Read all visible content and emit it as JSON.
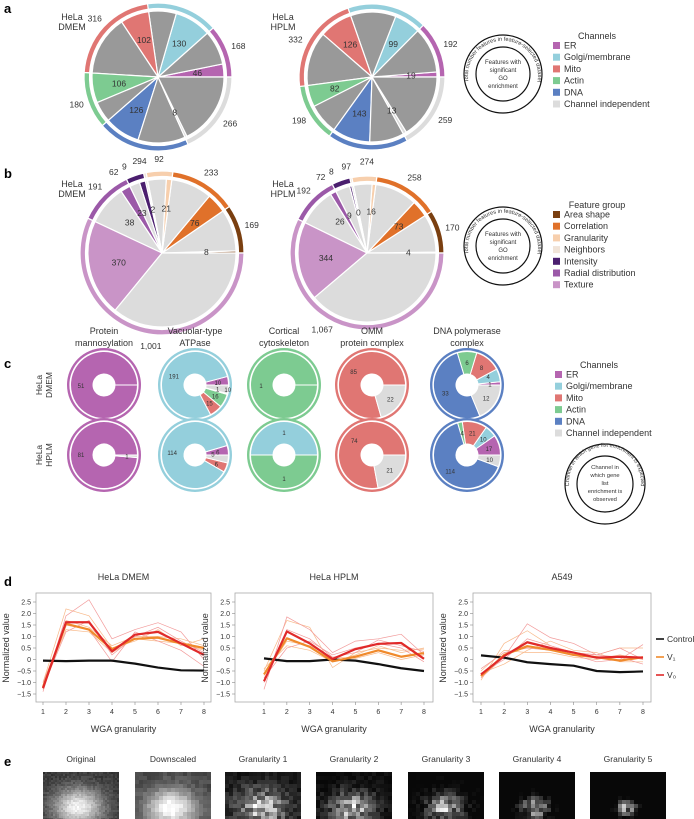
{
  "panel_labels": {
    "a": "a",
    "b": "b",
    "c": "c",
    "d": "d",
    "e": "e"
  },
  "colors": {
    "channels": {
      "ER": "#b565b0",
      "Golgi/membrane": "#94cfdc",
      "Mito": "#e07673",
      "Actin": "#7dcb91",
      "DNA": "#5b80c2",
      "Channel independent": "#dcdcdc"
    },
    "features": {
      "Area shape": "#7a3f10",
      "Correlation": "#e0712a",
      "Granularity": "#f7cfad",
      "Neighbors": "#f1e4d8",
      "Intensity": "#4b1f6f",
      "Radial distribution": "#9b59a8",
      "Texture": "#c994c7"
    },
    "nonsig_a": "#999999",
    "nonsig_b": "#dcdcdc",
    "control": "#111111",
    "v1": "#f08a2c",
    "v0": "#e02a2a",
    "v1_light": "#f8b98a",
    "v0_light": "#f29a9a"
  },
  "legend_a": {
    "title": "Channels",
    "items": [
      "ER",
      "Golgi/membrane",
      "Mito",
      "Actin",
      "DNA",
      "Channel independent"
    ],
    "outer_ring_text": "Total number features in feature-selected dataset",
    "inner_text": [
      "Features with",
      "significant",
      "GO",
      "enrichment"
    ]
  },
  "legend_b": {
    "title": "Feature group",
    "items": [
      "Area shape",
      "Correlation",
      "Granularity",
      "Neighbors",
      "Intensity",
      "Radial distribution",
      "Texture"
    ],
    "outer_ring_text": "Total number features in feature-selected dataset",
    "inner_text": [
      "Features with",
      "significant",
      "GO",
      "enrichment"
    ]
  },
  "legend_c": {
    "title": "Channels",
    "items": [
      "ER",
      "Golgi/membrane",
      "Mito",
      "Actin",
      "DNA",
      "Channel independent"
    ],
    "outer_ring_text": "Channel in which gene list enrichment is expected",
    "inner_text": [
      "Channel in",
      "which gene",
      "list",
      "enrichment is",
      "observed"
    ]
  },
  "chart_data": [
    {
      "panel": "a",
      "type": "pie",
      "title": [
        "HeLa",
        "DMEM"
      ],
      "groups": [
        {
          "name": "ER",
          "total": 168,
          "sig": 46
        },
        {
          "name": "Golgi/membrane",
          "total": 228,
          "sig": 130
        },
        {
          "name": "Mito",
          "total": 316,
          "sig": 102
        },
        {
          "name": "Actin",
          "total": 180,
          "sig": 106
        },
        {
          "name": "DNA",
          "total": 294,
          "sig": 126
        },
        {
          "name": "Channel independent",
          "total": 266,
          "sig": 8
        }
      ]
    },
    {
      "panel": "a",
      "type": "pie",
      "title": [
        "HeLa",
        "HPLM"
      ],
      "groups": [
        {
          "name": "ER",
          "total": 192,
          "sig": 19
        },
        {
          "name": "Golgi/membrane",
          "total": 271,
          "sig": 99
        },
        {
          "name": "Mito",
          "total": 332,
          "sig": 126
        },
        {
          "name": "Actin",
          "total": 198,
          "sig": 82
        },
        {
          "name": "DNA",
          "total": 274,
          "sig": 143
        },
        {
          "name": "Channel independent",
          "total": 259,
          "sig": 13
        }
      ]
    },
    {
      "panel": "b",
      "type": "pie",
      "title": [
        "HeLa",
        "DMEM"
      ],
      "groups": [
        {
          "name": "Area shape",
          "total": 169,
          "sig": 8
        },
        {
          "name": "Correlation",
          "total": 233,
          "sig": 76
        },
        {
          "name": "Granularity",
          "total": 92,
          "sig": 21
        },
        {
          "name": "Neighbors",
          "total": 9,
          "sig": 2
        },
        {
          "name": "Intensity",
          "total": 62,
          "sig": 23
        },
        {
          "name": "Radial distribution",
          "total": 191,
          "sig": 38
        },
        {
          "name": "Texture",
          "total": "1,001",
          "sig": 370
        }
      ]
    },
    {
      "panel": "b",
      "type": "pie",
      "title": [
        "HeLa",
        "HPLM"
      ],
      "groups": [
        {
          "name": "Area shape",
          "total": 170,
          "sig": 4
        },
        {
          "name": "Correlation",
          "total": 258,
          "sig": 73
        },
        {
          "name": "Granularity",
          "total": 97,
          "sig": 16
        },
        {
          "name": "Neighbors",
          "total": 8,
          "sig": 0
        },
        {
          "name": "Intensity",
          "total": 72,
          "sig": 9
        },
        {
          "name": "Radial distribution",
          "total": 192,
          "sig": 26
        },
        {
          "name": "Texture",
          "total": "1,067",
          "sig": 344
        }
      ]
    },
    {
      "panel": "c",
      "type": "pie",
      "rows": [
        "HeLa DMEM",
        "HeLa HPLM"
      ],
      "columns": [
        {
          "title": [
            "Protein",
            "mannosylation"
          ],
          "expected": "ER",
          "DMEM": [
            {
              "name": "ER",
              "value": 51
            }
          ],
          "HPLM": [
            {
              "name": "ER",
              "value": 81
            },
            {
              "name": "Channel independent",
              "value": 1
            }
          ]
        },
        {
          "title": [
            "Vacuolar-type",
            "ATPase"
          ],
          "expected": "Golgi/membrane",
          "DMEM": [
            {
              "name": "ER",
              "value": 10
            },
            {
              "name": "Golgi/membrane",
              "value": 191
            },
            {
              "name": "Mito",
              "value": 15
            },
            {
              "name": "Actin",
              "value": 16
            },
            {
              "name": "DNA",
              "value": 1
            },
            {
              "name": "Channel independent",
              "value": 10
            }
          ],
          "HPLM": [
            {
              "name": "ER",
              "value": 6
            },
            {
              "name": "Golgi/membrane",
              "value": 114
            },
            {
              "name": "Mito",
              "value": 6
            },
            {
              "name": "Channel independent",
              "value": 5
            }
          ]
        },
        {
          "title": [
            "Cortical",
            "cytoskeleton"
          ],
          "expected": "Actin",
          "DMEM": [
            {
              "name": "Actin",
              "value": 1
            }
          ],
          "HPLM": [
            {
              "name": "Golgi/membrane",
              "value": 1
            },
            {
              "name": "Actin",
              "value": 1
            }
          ]
        },
        {
          "title": [
            "OMM",
            "protein complex"
          ],
          "expected": "Mito",
          "DMEM": [
            {
              "name": "Mito",
              "value": 85
            },
            {
              "name": "Channel independent",
              "value": 22
            }
          ],
          "HPLM": [
            {
              "name": "Mito",
              "value": 74
            },
            {
              "name": "Channel independent",
              "value": 21
            }
          ]
        },
        {
          "title": [
            "DNA polymerase",
            "complex"
          ],
          "expected": "DNA",
          "DMEM": [
            {
              "name": "ER",
              "value": 1
            },
            {
              "name": "Golgi/membrane",
              "value": 4
            },
            {
              "name": "Mito",
              "value": 8
            },
            {
              "name": "Actin",
              "value": 6
            },
            {
              "name": "DNA",
              "value": 33
            },
            {
              "name": "Channel independent",
              "value": 12
            }
          ],
          "HPLM": [
            {
              "name": "ER",
              "value": 17
            },
            {
              "name": "Golgi/membrane",
              "value": 10
            },
            {
              "name": "Mito",
              "value": 21
            },
            {
              "name": "Actin",
              "value": 4
            },
            {
              "name": "DNA",
              "value": 114
            },
            {
              "name": "Channel independent",
              "value": 10
            }
          ]
        }
      ]
    },
    {
      "panel": "d",
      "type": "line",
      "title": "HeLa DMEM",
      "xlabel": "WGA granularity",
      "ylabel": "Normalized value",
      "x": [
        1,
        2,
        3,
        4,
        5,
        6,
        7,
        8
      ],
      "ylim": [
        -1.5,
        2.5
      ],
      "yticks": [
        "2.5",
        "2.0",
        "1.5",
        "1.0",
        "0.5",
        "0",
        "-0.5",
        "-1.0",
        "-1.5"
      ],
      "series": [
        {
          "name": "Control",
          "values": [
            -0.05,
            -0.07,
            -0.05,
            -0.05,
            -0.18,
            -0.35,
            -0.47,
            -0.48
          ]
        },
        {
          "name": "V1",
          "values": [
            -1.2,
            1.55,
            1.3,
            0.45,
            0.9,
            0.95,
            0.7,
            0.5
          ]
        },
        {
          "name": "V0",
          "values": [
            -1.25,
            1.62,
            1.62,
            0.35,
            1.08,
            1.2,
            0.7,
            0.2
          ]
        }
      ],
      "replicates_v1": [
        [
          -1.0,
          2.2,
          1.9,
          0.5,
          0.8,
          1.3,
          0.6,
          0.9
        ],
        [
          -1.1,
          1.3,
          1.2,
          0.3,
          0.9,
          0.8,
          0.7,
          0.4
        ],
        [
          -1.3,
          1.7,
          1.4,
          0.6,
          1.0,
          1.0,
          0.9,
          0.6
        ]
      ],
      "replicates_v0": [
        [
          -1.4,
          1.9,
          2.6,
          0.9,
          1.3,
          1.6,
          1.2,
          0.0
        ],
        [
          -1.2,
          1.2,
          1.7,
          0.2,
          1.0,
          1.4,
          0.8,
          0.3
        ],
        [
          -1.0,
          1.5,
          1.3,
          -0.1,
          1.2,
          0.8,
          0.4,
          -0.3
        ]
      ]
    },
    {
      "panel": "d",
      "type": "line",
      "title": "HeLa HPLM",
      "xlabel": "WGA granularity",
      "ylabel": "Normalized value",
      "x": [
        1,
        2,
        3,
        4,
        5,
        6,
        7,
        8
      ],
      "ylim": [
        -1.5,
        2.5
      ],
      "yticks": [
        "2.5",
        "2.0",
        "1.5",
        "1.0",
        "0.5",
        "0",
        "-0.5",
        "-1.0",
        "-1.5"
      ],
      "series": [
        {
          "name": "Control",
          "values": [
            0.05,
            -0.07,
            -0.07,
            0.0,
            -0.05,
            -0.2,
            -0.38,
            -0.5
          ]
        },
        {
          "name": "V1",
          "values": [
            -0.65,
            0.92,
            0.55,
            -0.08,
            0.12,
            0.4,
            0.12,
            0.28
          ]
        },
        {
          "name": "V0",
          "values": [
            -0.95,
            1.22,
            0.7,
            0.02,
            0.45,
            0.68,
            0.72,
            0.03
          ]
        }
      ],
      "replicates_v1": [
        [
          -0.5,
          1.7,
          1.4,
          -0.35,
          0.3,
          0.5,
          0.4,
          0.45
        ],
        [
          -0.7,
          0.8,
          0.6,
          0.1,
          0.05,
          0.3,
          0.0,
          0.2
        ],
        [
          -0.4,
          0.6,
          0.4,
          -0.1,
          0.2,
          0.6,
          0.3,
          0.5
        ]
      ],
      "replicates_v0": [
        [
          -1.3,
          1.85,
          1.3,
          0.3,
          0.8,
          0.9,
          1.1,
          0.2
        ],
        [
          -0.8,
          0.5,
          0.8,
          0.2,
          0.5,
          0.7,
          0.5,
          -0.1
        ],
        [
          -1.0,
          1.3,
          0.9,
          0.1,
          0.3,
          0.85,
          0.6,
          0.35
        ]
      ]
    },
    {
      "panel": "d",
      "type": "line",
      "title": "A549",
      "xlabel": "WGA granularity",
      "ylabel": "Normalized value",
      "x": [
        1,
        2,
        3,
        4,
        5,
        6,
        7,
        8
      ],
      "ylim": [
        -1.5,
        2.5
      ],
      "yticks": [
        "2.5",
        "2.0",
        "1.5",
        "1.0",
        "0.5",
        "0",
        "-0.5",
        "-1.0",
        "-1.5"
      ],
      "series": [
        {
          "name": "Control",
          "values": [
            0.18,
            0.08,
            -0.12,
            -0.2,
            -0.27,
            -0.5,
            -0.55,
            -0.52
          ]
        },
        {
          "name": "V1",
          "values": [
            -0.72,
            0.2,
            0.58,
            0.42,
            0.2,
            0.1,
            -0.05,
            0.1
          ]
        },
        {
          "name": "V0",
          "values": [
            -0.65,
            0.15,
            0.75,
            0.5,
            0.3,
            0.08,
            0.12,
            0.08
          ]
        }
      ],
      "replicates_v1": [
        [
          -0.9,
          0.7,
          1.25,
          0.6,
          0.3,
          0.2,
          0.5,
          0.5
        ],
        [
          -0.6,
          -0.2,
          0.4,
          0.8,
          0.4,
          0.3,
          -0.1,
          -0.1
        ],
        [
          -0.5,
          0.4,
          0.3,
          0.3,
          0.1,
          0.0,
          0.2,
          0.0
        ]
      ],
      "replicates_v0": [
        [
          -0.8,
          0.1,
          1.55,
          0.95,
          0.7,
          0.2,
          0.5,
          0.0
        ],
        [
          -0.4,
          0.3,
          0.5,
          0.4,
          0.2,
          -0.1,
          0.0,
          0.65
        ],
        [
          -0.6,
          0.0,
          0.9,
          0.6,
          0.3,
          0.2,
          0.1,
          -0.2
        ]
      ]
    }
  ],
  "legend_d": {
    "items": [
      "Control",
      "V₁",
      "V₀"
    ]
  },
  "panel_e": {
    "titles": [
      "Original",
      "Downscaled",
      "Granularity 1",
      "Granularity 2",
      "Granularity 3",
      "Granularity 4",
      "Granularity 5"
    ]
  }
}
